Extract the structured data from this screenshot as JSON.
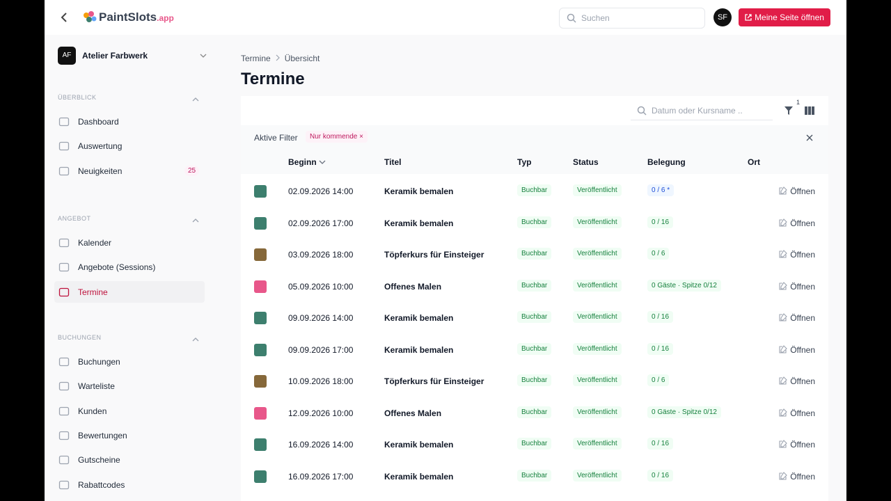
{
  "header": {
    "logo_main": "PaintSlots",
    "logo_suffix": ".app",
    "search_placeholder": "Suchen",
    "avatar": "SF",
    "cta": "Meine Seite öffnen"
  },
  "sidebar": {
    "workspace": {
      "initials": "AF",
      "name": "Atelier Farbwerk"
    },
    "sections": [
      {
        "title": "ÜBERBLICK",
        "items": [
          {
            "label": "Dashboard"
          },
          {
            "label": "Auswertung"
          },
          {
            "label": "Neuigkeiten",
            "badge": "25"
          }
        ]
      },
      {
        "title": "ANGEBOT",
        "items": [
          {
            "label": "Kalender"
          },
          {
            "label": "Angebote (Sessions)"
          },
          {
            "label": "Termine",
            "active": true
          }
        ]
      },
      {
        "title": "BUCHUNGEN",
        "items": [
          {
            "label": "Buchungen"
          },
          {
            "label": "Warteliste"
          },
          {
            "label": "Kunden"
          },
          {
            "label": "Bewertungen"
          },
          {
            "label": "Gutscheine"
          },
          {
            "label": "Rabattcodes"
          }
        ]
      }
    ]
  },
  "main": {
    "breadcrumb": [
      "Termine",
      "Übersicht"
    ],
    "title": "Termine",
    "table_search_placeholder": "Datum oder Kursname ..",
    "filter_count": 1,
    "active_filters_label": "Aktive Filter",
    "filter_chip": "Nur kommende",
    "table": {
      "columns": [
        "Beginn",
        "Titel",
        "Typ",
        "Status",
        "Belegung",
        "Ort"
      ],
      "rows": [
        {
          "color": "#3d7f6e",
          "begin": "02.09.2026 14:00",
          "title": "Keramik bemalen",
          "type": "Buchbar",
          "status": "Veröffentlicht",
          "occupancy": "0 / 6 *",
          "occupancy_color": "#1d4ed8",
          "action": "Öffnen"
        },
        {
          "color": "#3d7f6e",
          "begin": "02.09.2026 17:00",
          "title": "Keramik bemalen",
          "type": "Buchbar",
          "status": "Veröffentlicht",
          "occupancy": "0 / 16",
          "occupancy_color": "#15803d",
          "action": "Öffnen"
        },
        {
          "color": "#86683a",
          "begin": "03.09.2026 18:00",
          "title": "Töpferkurs für Einsteiger",
          "type": "Buchbar",
          "status": "Veröffentlicht",
          "occupancy": "0 / 6",
          "occupancy_color": "#15803d",
          "action": "Öffnen"
        },
        {
          "color": "#e8578a",
          "begin": "05.09.2026 10:00",
          "title": "Offenes Malen",
          "type": "Buchbar",
          "status": "Veröffentlicht",
          "occupancy": "0 Gäste · Spitze 0/12",
          "occupancy_color": "#15803d",
          "action": "Öffnen"
        },
        {
          "color": "#3d7f6e",
          "begin": "09.09.2026 14:00",
          "title": "Keramik bemalen",
          "type": "Buchbar",
          "status": "Veröffentlicht",
          "occupancy": "0 / 16",
          "occupancy_color": "#15803d",
          "action": "Öffnen"
        },
        {
          "color": "#3d7f6e",
          "begin": "09.09.2026 17:00",
          "title": "Keramik bemalen",
          "type": "Buchbar",
          "status": "Veröffentlicht",
          "occupancy": "0 / 16",
          "occupancy_color": "#15803d",
          "action": "Öffnen"
        },
        {
          "color": "#86683a",
          "begin": "10.09.2026 18:00",
          "title": "Töpferkurs für Einsteiger",
          "type": "Buchbar",
          "status": "Veröffentlicht",
          "occupancy": "0 / 6",
          "occupancy_color": "#15803d",
          "action": "Öffnen"
        },
        {
          "color": "#e8578a",
          "begin": "12.09.2026 10:00",
          "title": "Offenes Malen",
          "type": "Buchbar",
          "status": "Veröffentlicht",
          "occupancy": "0 Gäste · Spitze 0/12",
          "occupancy_color": "#15803d",
          "action": "Öffnen"
        },
        {
          "color": "#3d7f6e",
          "begin": "16.09.2026 14:00",
          "title": "Keramik bemalen",
          "type": "Buchbar",
          "status": "Veröffentlicht",
          "occupancy": "0 / 16",
          "occupancy_color": "#15803d",
          "action": "Öffnen"
        },
        {
          "color": "#3d7f6e",
          "begin": "16.09.2026 17:00",
          "title": "Keramik bemalen",
          "type": "Buchbar",
          "status": "Veröffentlicht",
          "occupancy": "0 / 16",
          "occupancy_color": "#15803d",
          "action": "Öffnen"
        }
      ]
    }
  }
}
